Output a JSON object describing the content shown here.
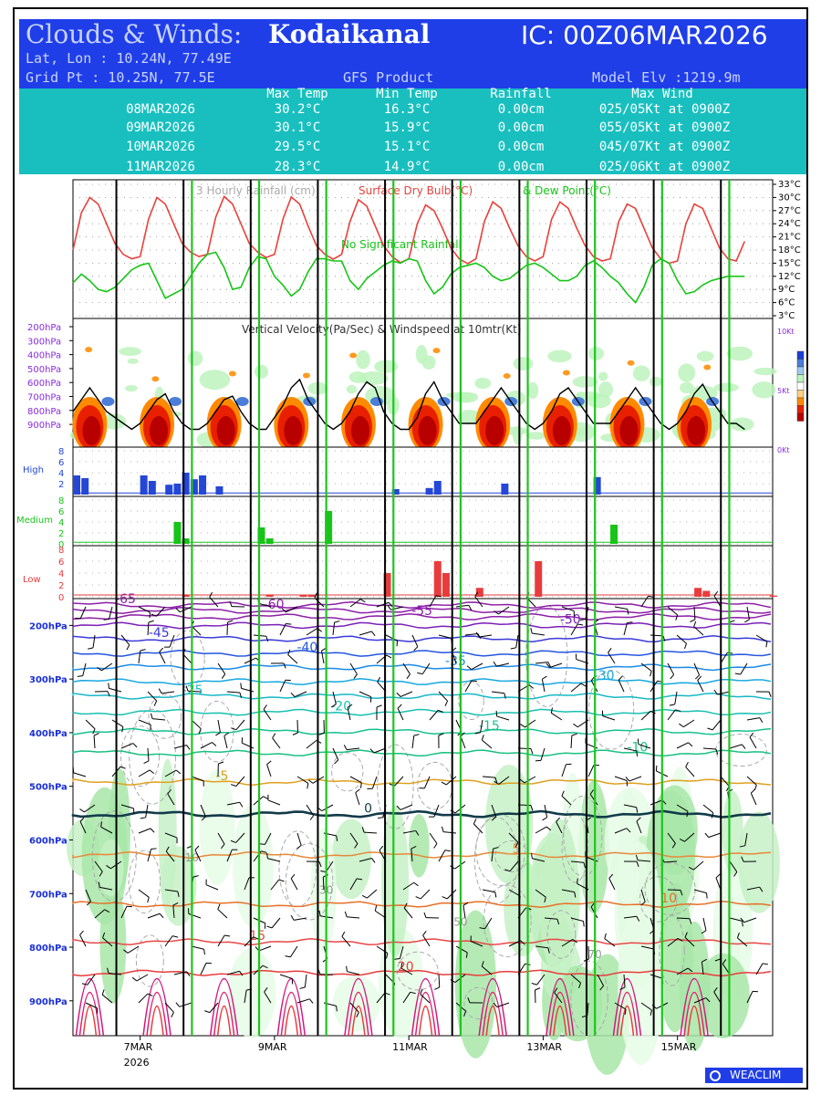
{
  "header": {
    "title_prefix": "Clouds & Winds:",
    "location": "Kodaikanal",
    "ic_label": "IC: 00Z06MAR2026",
    "latlon_label": "Lat, Lon : 10.24N, 77.49E",
    "gridpt_label": "Grid Pt  : 10.25N, 77.5E",
    "product_label": "GFS Product",
    "elevation_label": "Model Elv :1219.9m"
  },
  "summary_table": {
    "columns": [
      "",
      "Max Temp",
      "Min Temp",
      "Rainfall",
      "Max Wind"
    ],
    "rows": [
      [
        "08MAR2026",
        "30.2°C",
        "16.3°C",
        "0.00cm",
        "025/05Kt at 0900Z"
      ],
      [
        "09MAR2026",
        "30.1°C",
        "15.9°C",
        "0.00cm",
        "055/05Kt at 0900Z"
      ],
      [
        "10MAR2026",
        "29.5°C",
        "15.1°C",
        "0.00cm",
        "045/07Kt at 0900Z"
      ],
      [
        "11MAR2026",
        "28.3°C",
        "14.9°C",
        "0.00cm",
        "025/06Kt at 0900Z"
      ]
    ]
  },
  "colors": {
    "header_bg": "#1f3ee8",
    "table_bg": "#19bfbf",
    "dry_bulb": "#e8413c",
    "dew_point": "#16c516",
    "day_line": "#000000",
    "noon_line": "#1fc41f",
    "high_cloud": "#2447d8",
    "medium_cloud": "#18c418",
    "low_cloud": "#e83c3c",
    "axis_label_purple": "#8a2be2",
    "axis_label_blue": "#1a2fd6"
  },
  "chart_data": [
    {
      "type": "line",
      "name": "surface",
      "title": "3 Hourly Rainfall (cm)",
      "title_parts": [
        "3 Hourly Rainfall (cm)",
        "Surface Dry Bulb(°C)",
        "& Dew Point(°C)"
      ],
      "annotation": "No Significant Rainfall",
      "ylabel_ticks": [
        "3°C",
        "6°C",
        "9°C",
        "12°C",
        "15°C",
        "18°C",
        "21°C",
        "24°C",
        "27°C",
        "30°C",
        "33°C"
      ],
      "ylim": [
        3,
        33
      ],
      "x_hours": [
        0,
        3,
        6,
        9,
        12,
        15,
        18,
        21,
        24,
        27,
        30,
        33,
        36,
        39,
        42,
        45,
        48,
        51,
        54,
        57,
        60,
        63,
        66,
        69,
        72,
        75,
        78,
        81,
        84,
        87,
        90,
        93,
        96,
        99,
        102,
        105,
        108,
        111,
        114,
        117,
        120,
        123,
        126,
        129,
        132,
        135,
        138,
        141,
        144,
        147,
        150,
        153,
        156,
        159,
        162,
        165,
        168,
        171,
        174,
        177,
        180,
        183,
        186,
        189,
        192,
        195,
        198,
        201,
        204,
        207,
        210,
        213,
        216,
        219,
        222,
        225,
        228,
        231,
        234,
        237,
        240
      ],
      "series": [
        {
          "name": "Surface Dry Bulb(°C)",
          "values": [
            18.0,
            26.5,
            30.0,
            28.5,
            24.0,
            19.5,
            17.0,
            16.0,
            16.5,
            25.0,
            30.0,
            28.5,
            24.0,
            19.5,
            17.5,
            16.5,
            17.0,
            25.5,
            30.2,
            28.5,
            24.0,
            19.5,
            17.5,
            16.3,
            17.0,
            25.0,
            30.1,
            28.5,
            23.5,
            19.0,
            17.0,
            15.9,
            17.0,
            24.5,
            29.5,
            28.0,
            23.5,
            19.0,
            16.5,
            15.1,
            16.0,
            24.0,
            28.3,
            27.0,
            23.0,
            18.5,
            16.0,
            14.9,
            16.0,
            24.5,
            29.0,
            27.5,
            23.0,
            19.0,
            16.5,
            15.5,
            16.5,
            25.0,
            29.0,
            27.5,
            23.0,
            19.0,
            16.5,
            15.5,
            16.0,
            24.5,
            28.5,
            27.5,
            23.0,
            18.5,
            16.0,
            15.0,
            15.5,
            24.0,
            28.5,
            27.5,
            23.0,
            18.5,
            16.0,
            15.5,
            20.0
          ]
        },
        {
          "name": "Dew Point(°C)",
          "values": [
            10.5,
            12.5,
            11.0,
            9.0,
            8.5,
            9.5,
            11.5,
            13.5,
            14.5,
            15.0,
            11.0,
            7.0,
            8.0,
            9.0,
            12.0,
            15.0,
            17.0,
            17.5,
            14.0,
            9.0,
            9.5,
            14.0,
            16.5,
            16.0,
            12.0,
            10.0,
            7.5,
            9.0,
            13.0,
            16.0,
            16.0,
            15.5,
            15.5,
            11.0,
            9.0,
            11.5,
            13.0,
            14.5,
            15.5,
            15.0,
            16.0,
            15.5,
            11.0,
            8.0,
            9.5,
            12.5,
            14.0,
            14.5,
            15.0,
            14.0,
            12.0,
            11.0,
            11.5,
            13.0,
            14.5,
            15.0,
            14.0,
            12.5,
            11.0,
            11.0,
            12.0,
            14.5,
            15.5,
            14.0,
            12.0,
            10.5,
            8.0,
            6.0,
            9.5,
            14.5,
            16.0,
            15.0,
            11.0,
            8.0,
            8.5,
            10.0,
            11.0,
            11.5,
            12.0,
            12.0,
            12.0
          ]
        }
      ]
    },
    {
      "type": "heatmap",
      "name": "vertical_velocity",
      "title": "Vertical Velocity(Pa/Sec) & Windspeed at 10mtr(Kt)",
      "y_ticks": [
        "200hPa",
        "300hPa",
        "400hPa",
        "500hPa",
        "600hPa",
        "700hPa",
        "800hPa",
        "900hPa"
      ],
      "y2_ticks": [
        "10Kt",
        "5Kt",
        "0Kt"
      ],
      "ylim_kt": [
        0,
        10
      ],
      "windspeed_kt": [
        3.0,
        4.0,
        5.0,
        4.0,
        3.0,
        2.5,
        2.0,
        1.5,
        2.0,
        3.0,
        4.0,
        4.5,
        3.0,
        2.0,
        1.5,
        1.5,
        2.0,
        3.0,
        4.0,
        4.3,
        3.0,
        2.0,
        1.5,
        1.5,
        2.5,
        3.5,
        5.0,
        5.7,
        4.0,
        3.0,
        2.0,
        1.5,
        2.0,
        3.0,
        4.5,
        5.5,
        5.0,
        3.0,
        2.0,
        1.5,
        1.5,
        2.5,
        4.5,
        5.5,
        4.0,
        3.0,
        2.0,
        2.0,
        2.0,
        3.0,
        4.0,
        5.0,
        4.0,
        3.0,
        2.0,
        1.5,
        2.0,
        3.0,
        4.5,
        5.0,
        4.0,
        3.0,
        2.0,
        2.0,
        2.0,
        3.0,
        4.0,
        5.0,
        4.0,
        3.0,
        2.0,
        1.5,
        2.0,
        3.0,
        4.5,
        5.3,
        4.0,
        3.0,
        2.0,
        2.0,
        1.5
      ]
    },
    {
      "type": "bar",
      "name": "high_cloud",
      "label": "High",
      "y_ticks": [
        "2",
        "4",
        "6",
        "8"
      ],
      "ylim": [
        0,
        8
      ],
      "bars": [
        [
          0,
          3.5
        ],
        [
          3,
          3.0
        ],
        [
          24,
          3.5
        ],
        [
          27,
          2.5
        ],
        [
          33,
          1.8
        ],
        [
          36,
          2.0
        ],
        [
          39,
          4.0
        ],
        [
          42,
          2.8
        ],
        [
          45,
          3.5
        ],
        [
          51,
          1.5
        ],
        [
          114,
          1.0
        ],
        [
          126,
          1.2
        ],
        [
          129,
          2.5
        ],
        [
          153,
          2.0
        ],
        [
          186,
          3.2
        ]
      ]
    },
    {
      "type": "bar",
      "name": "medium_cloud",
      "label": "Medium",
      "y_ticks": [
        "0",
        "2",
        "4",
        "6",
        "8"
      ],
      "ylim": [
        0,
        8
      ],
      "bars": [
        [
          36,
          4.0
        ],
        [
          39,
          1.0
        ],
        [
          66,
          3.0
        ],
        [
          69,
          1.0
        ],
        [
          90,
          6.0
        ],
        [
          192,
          3.5
        ]
      ]
    },
    {
      "type": "bar",
      "name": "low_cloud",
      "label": "Low",
      "y_ticks": [
        "0",
        "2",
        "4",
        "6",
        "8"
      ],
      "ylim": [
        0,
        8
      ],
      "bars": [
        [
          39,
          0.4
        ],
        [
          69,
          0.4
        ],
        [
          81,
          0.3
        ],
        [
          84,
          0.3
        ],
        [
          111,
          4.0
        ],
        [
          129,
          6.0
        ],
        [
          132,
          4.0
        ],
        [
          144,
          1.5
        ],
        [
          165,
          6.0
        ],
        [
          222,
          1.5
        ],
        [
          225,
          1.0
        ],
        [
          249,
          0.2
        ]
      ]
    },
    {
      "type": "line",
      "name": "temperature_wind_profile",
      "y_ticks": [
        "200hPa",
        "300hPa",
        "400hPa",
        "500hPa",
        "600hPa",
        "700hPa",
        "800hPa",
        "900hPa"
      ],
      "ylim_hpa": [
        150,
        965
      ],
      "x_tick_labels": [
        "7MAR",
        "9MAR",
        "11MAR",
        "13MAR",
        "15MAR"
      ],
      "x_tick_sublabel": "2026",
      "x_tick_hours": [
        24,
        72,
        120,
        168,
        216
      ],
      "isotherms": [
        {
          "t": -65,
          "hpa": 162,
          "color": "#8e1fa8",
          "label": "-65"
        },
        {
          "t": -60,
          "hpa": 172,
          "color": "#8e1fa8",
          "label": "-60"
        },
        {
          "t": -55,
          "hpa": 184,
          "color": "#8e1fa8",
          "label": "-55"
        },
        {
          "t": -50,
          "hpa": 200,
          "color": "#7a20b8",
          "label": "-50"
        },
        {
          "t": -45,
          "hpa": 225,
          "color": "#3a3ad8",
          "label": "-45"
        },
        {
          "t": -40,
          "hpa": 252,
          "color": "#2456e0",
          "label": "-40"
        },
        {
          "t": -35,
          "hpa": 278,
          "color": "#1a8be8",
          "label": "-35"
        },
        {
          "t": -30,
          "hpa": 305,
          "color": "#18a8e0",
          "label": "-30"
        },
        {
          "t": -25,
          "hpa": 332,
          "color": "#18b8c8",
          "label": "-25"
        },
        {
          "t": -20,
          "hpa": 362,
          "color": "#18c0b0",
          "label": "-20"
        },
        {
          "t": -15,
          "hpa": 398,
          "color": "#18c090",
          "label": "-15"
        },
        {
          "t": -10,
          "hpa": 438,
          "color": "#18c080",
          "label": "-10"
        },
        {
          "t": -5,
          "hpa": 492,
          "color": "#e0a020",
          "label": "-5"
        },
        {
          "t": 0,
          "hpa": 552,
          "color": "#123b4a",
          "label": "0"
        },
        {
          "t": 5,
          "hpa": 628,
          "color": "#e88838",
          "label": "5"
        },
        {
          "t": 10,
          "hpa": 720,
          "color": "#e87028",
          "label": "10"
        },
        {
          "t": 15,
          "hpa": 790,
          "color": "#e84848",
          "label": "15"
        },
        {
          "t": 20,
          "hpa": 848,
          "color": "#e83c3c",
          "label": "20"
        }
      ],
      "humidity_labels": [
        "10",
        "30",
        "50",
        "70"
      ]
    }
  ],
  "footer": {
    "logo_text": "WEACLIM"
  }
}
